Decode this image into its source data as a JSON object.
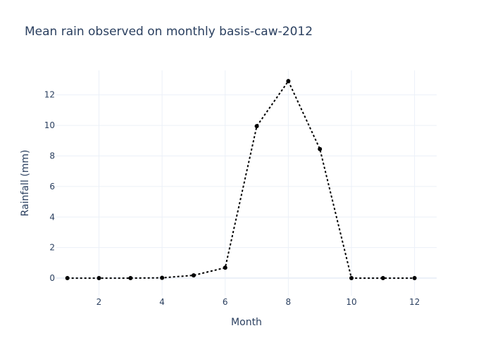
{
  "chart_data": {
    "type": "line",
    "title": "Mean rain observed on monthly basis-caw-2012",
    "xlabel": "Month",
    "ylabel": "Rainfall (mm)",
    "x": [
      1,
      2,
      3,
      4,
      5,
      6,
      7,
      8,
      9,
      10,
      11,
      12
    ],
    "series": [
      {
        "values": [
          0.0,
          0.0,
          0.0,
          0.02,
          0.18,
          0.68,
          9.95,
          12.9,
          8.45,
          0.0,
          0.0,
          0.0
        ]
      }
    ],
    "xlim": [
      0.65,
      12.7
    ],
    "ylim": [
      -1.15,
      13.6
    ],
    "x_ticks": [
      2,
      4,
      6,
      8,
      10,
      12
    ],
    "y_ticks": [
      0,
      2,
      4,
      6,
      8,
      10,
      12
    ],
    "grid": true,
    "line_color": "#000000",
    "line_style": "dotted",
    "marker_color": "#000000"
  }
}
